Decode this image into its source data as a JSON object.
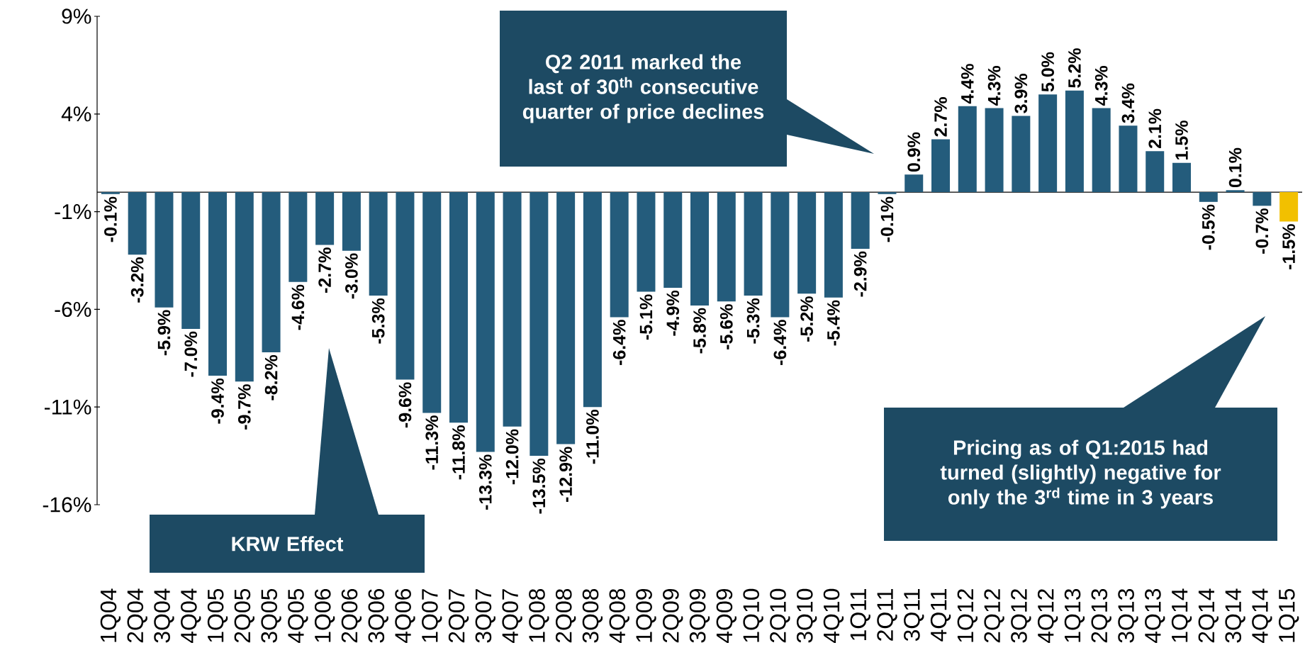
{
  "chart_data": {
    "type": "bar",
    "categories": [
      "1Q04",
      "2Q04",
      "3Q04",
      "4Q04",
      "1Q05",
      "2Q05",
      "3Q05",
      "4Q05",
      "1Q06",
      "2Q06",
      "3Q06",
      "4Q06",
      "1Q07",
      "2Q07",
      "3Q07",
      "4Q07",
      "1Q08",
      "2Q08",
      "3Q08",
      "4Q08",
      "1Q09",
      "2Q09",
      "3Q09",
      "4Q09",
      "1Q10",
      "2Q10",
      "3Q10",
      "4Q10",
      "1Q11",
      "2Q11",
      "3Q11",
      "4Q11",
      "1Q12",
      "2Q12",
      "3Q12",
      "4Q12",
      "1Q13",
      "2Q13",
      "3Q13",
      "4Q13",
      "1Q14",
      "2Q14",
      "3Q14",
      "4Q14",
      "1Q15"
    ],
    "values": [
      -0.1,
      -3.2,
      -5.9,
      -7.0,
      -9.4,
      -9.7,
      -8.2,
      -4.6,
      -2.7,
      -3.0,
      -5.3,
      -9.6,
      -11.3,
      -11.8,
      -13.3,
      -12.0,
      -13.5,
      -12.9,
      -11.0,
      -6.4,
      -5.1,
      -4.9,
      -5.8,
      -5.6,
      -5.3,
      -6.4,
      -5.2,
      -5.4,
      -2.9,
      -0.1,
      0.9,
      2.7,
      4.4,
      4.3,
      3.9,
      5.0,
      5.2,
      4.3,
      3.4,
      2.1,
      1.5,
      -0.5,
      0.1,
      -0.7,
      -1.5
    ],
    "value_labels": [
      "-0.1%",
      "-3.2%",
      "-5.9%",
      "-7.0%",
      "-9.4%",
      "-9.7%",
      "-8.2%",
      "-4.6%",
      "-2.7%",
      "-3.0%",
      "-5.3%",
      "-9.6%",
      "-11.3%",
      "-11.8%",
      "-13.3%",
      "-12.0%",
      "-13.5%",
      "-12.9%",
      "-11.0%",
      "-6.4%",
      "-5.1%",
      "-4.9%",
      "-5.8%",
      "-5.6%",
      "-5.3%",
      "-6.4%",
      "-5.2%",
      "-5.4%",
      "-2.9%",
      "-0.1%",
      "0.9%",
      "2.7%",
      "4.4%",
      "4.3%",
      "3.9%",
      "5.0%",
      "5.2%",
      "4.3%",
      "3.4%",
      "2.1%",
      "1.5%",
      "-0.5%",
      "0.1%",
      "-0.7%",
      "-1.5%"
    ],
    "colors": [
      "#245c7c",
      "#245c7c",
      "#245c7c",
      "#245c7c",
      "#245c7c",
      "#245c7c",
      "#245c7c",
      "#245c7c",
      "#245c7c",
      "#245c7c",
      "#245c7c",
      "#245c7c",
      "#245c7c",
      "#245c7c",
      "#245c7c",
      "#245c7c",
      "#245c7c",
      "#245c7c",
      "#245c7c",
      "#245c7c",
      "#245c7c",
      "#245c7c",
      "#245c7c",
      "#245c7c",
      "#245c7c",
      "#245c7c",
      "#245c7c",
      "#245c7c",
      "#245c7c",
      "#245c7c",
      "#245c7c",
      "#245c7c",
      "#245c7c",
      "#245c7c",
      "#245c7c",
      "#245c7c",
      "#245c7c",
      "#245c7c",
      "#245c7c",
      "#245c7c",
      "#245c7c",
      "#245c7c",
      "#245c7c",
      "#245c7c",
      "#f2c000"
    ],
    "ylim": [
      -16,
      9
    ],
    "yticks": [
      {
        "value": -16,
        "label": "-16%"
      },
      {
        "value": -11,
        "label": "-11%"
      },
      {
        "value": -6,
        "label": "-6%"
      },
      {
        "value": -1,
        "label": "-1%"
      },
      {
        "value": 4,
        "label": "4%"
      },
      {
        "value": 9,
        "label": "9%"
      }
    ],
    "annotations": [
      "Q2 2011 marked the last of 30$^{th}$ consecutive quarter of price declines",
      "KRW Effect",
      "Pricing as of Q1:2015 had turned (slightly) negative for only the 3$^{rd}$ time in 3 years"
    ]
  }
}
